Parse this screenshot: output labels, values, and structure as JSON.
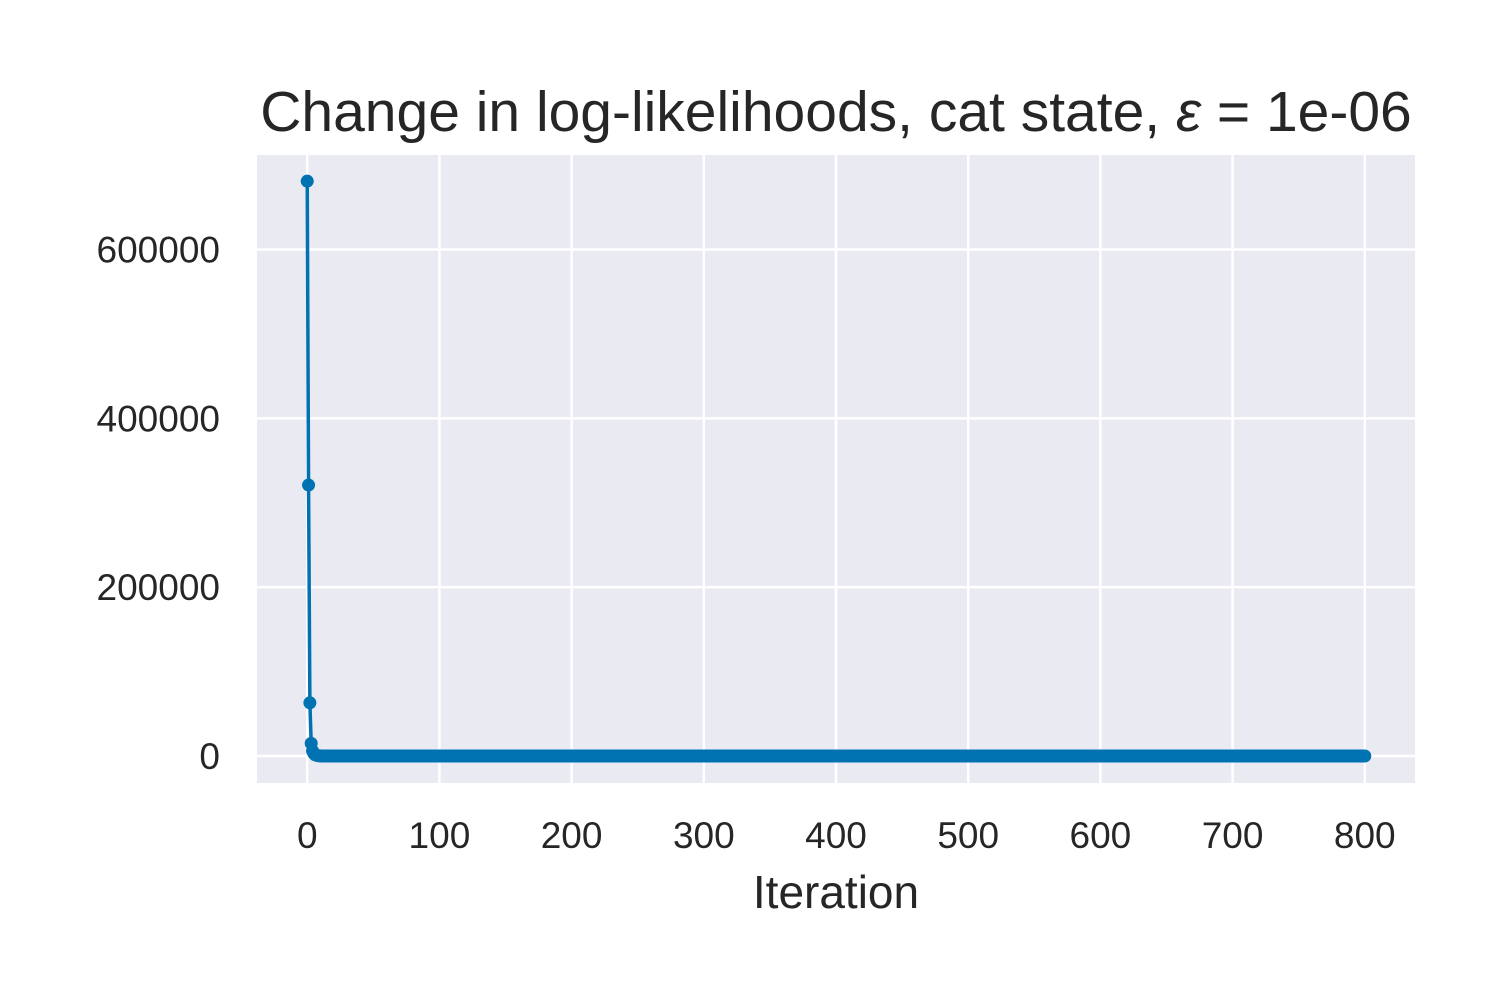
{
  "chart_data": {
    "type": "line",
    "title": "Change in log-likelihoods, cat state, ε = 1e-06",
    "title_parts": {
      "prefix": "Change in log-likelihoods, cat state, ",
      "symbol": "ε",
      "suffix": " = 1e-06"
    },
    "xlabel": "Iteration",
    "ylabel": "",
    "xlim": [
      -38,
      838
    ],
    "ylim": [
      -32000,
      712000
    ],
    "xticks": [
      0,
      100,
      200,
      300,
      400,
      500,
      600,
      700,
      800
    ],
    "xtick_labels": [
      "0",
      "100",
      "200",
      "300",
      "400",
      "500",
      "600",
      "700",
      "800"
    ],
    "yticks": [
      0,
      200000,
      400000,
      600000
    ],
    "ytick_labels": [
      "0",
      "200000",
      "400000",
      "600000"
    ],
    "grid": true,
    "legend": false,
    "colors": {
      "background": "#eaeaf2",
      "grid": "#ffffff",
      "series": "#0072b2",
      "text": "#262626"
    },
    "series": [
      {
        "marker": "circle",
        "x_start": 0,
        "x_end": 800,
        "first_points": [
          [
            0,
            681000
          ],
          [
            1,
            321000
          ],
          [
            2,
            63000
          ],
          [
            3,
            15000
          ],
          [
            4,
            6000
          ],
          [
            5,
            3000
          ],
          [
            6,
            1500
          ],
          [
            7,
            800
          ],
          [
            8,
            400
          ],
          [
            9,
            200
          ],
          [
            10,
            100
          ]
        ],
        "tail_value": 0
      }
    ]
  }
}
